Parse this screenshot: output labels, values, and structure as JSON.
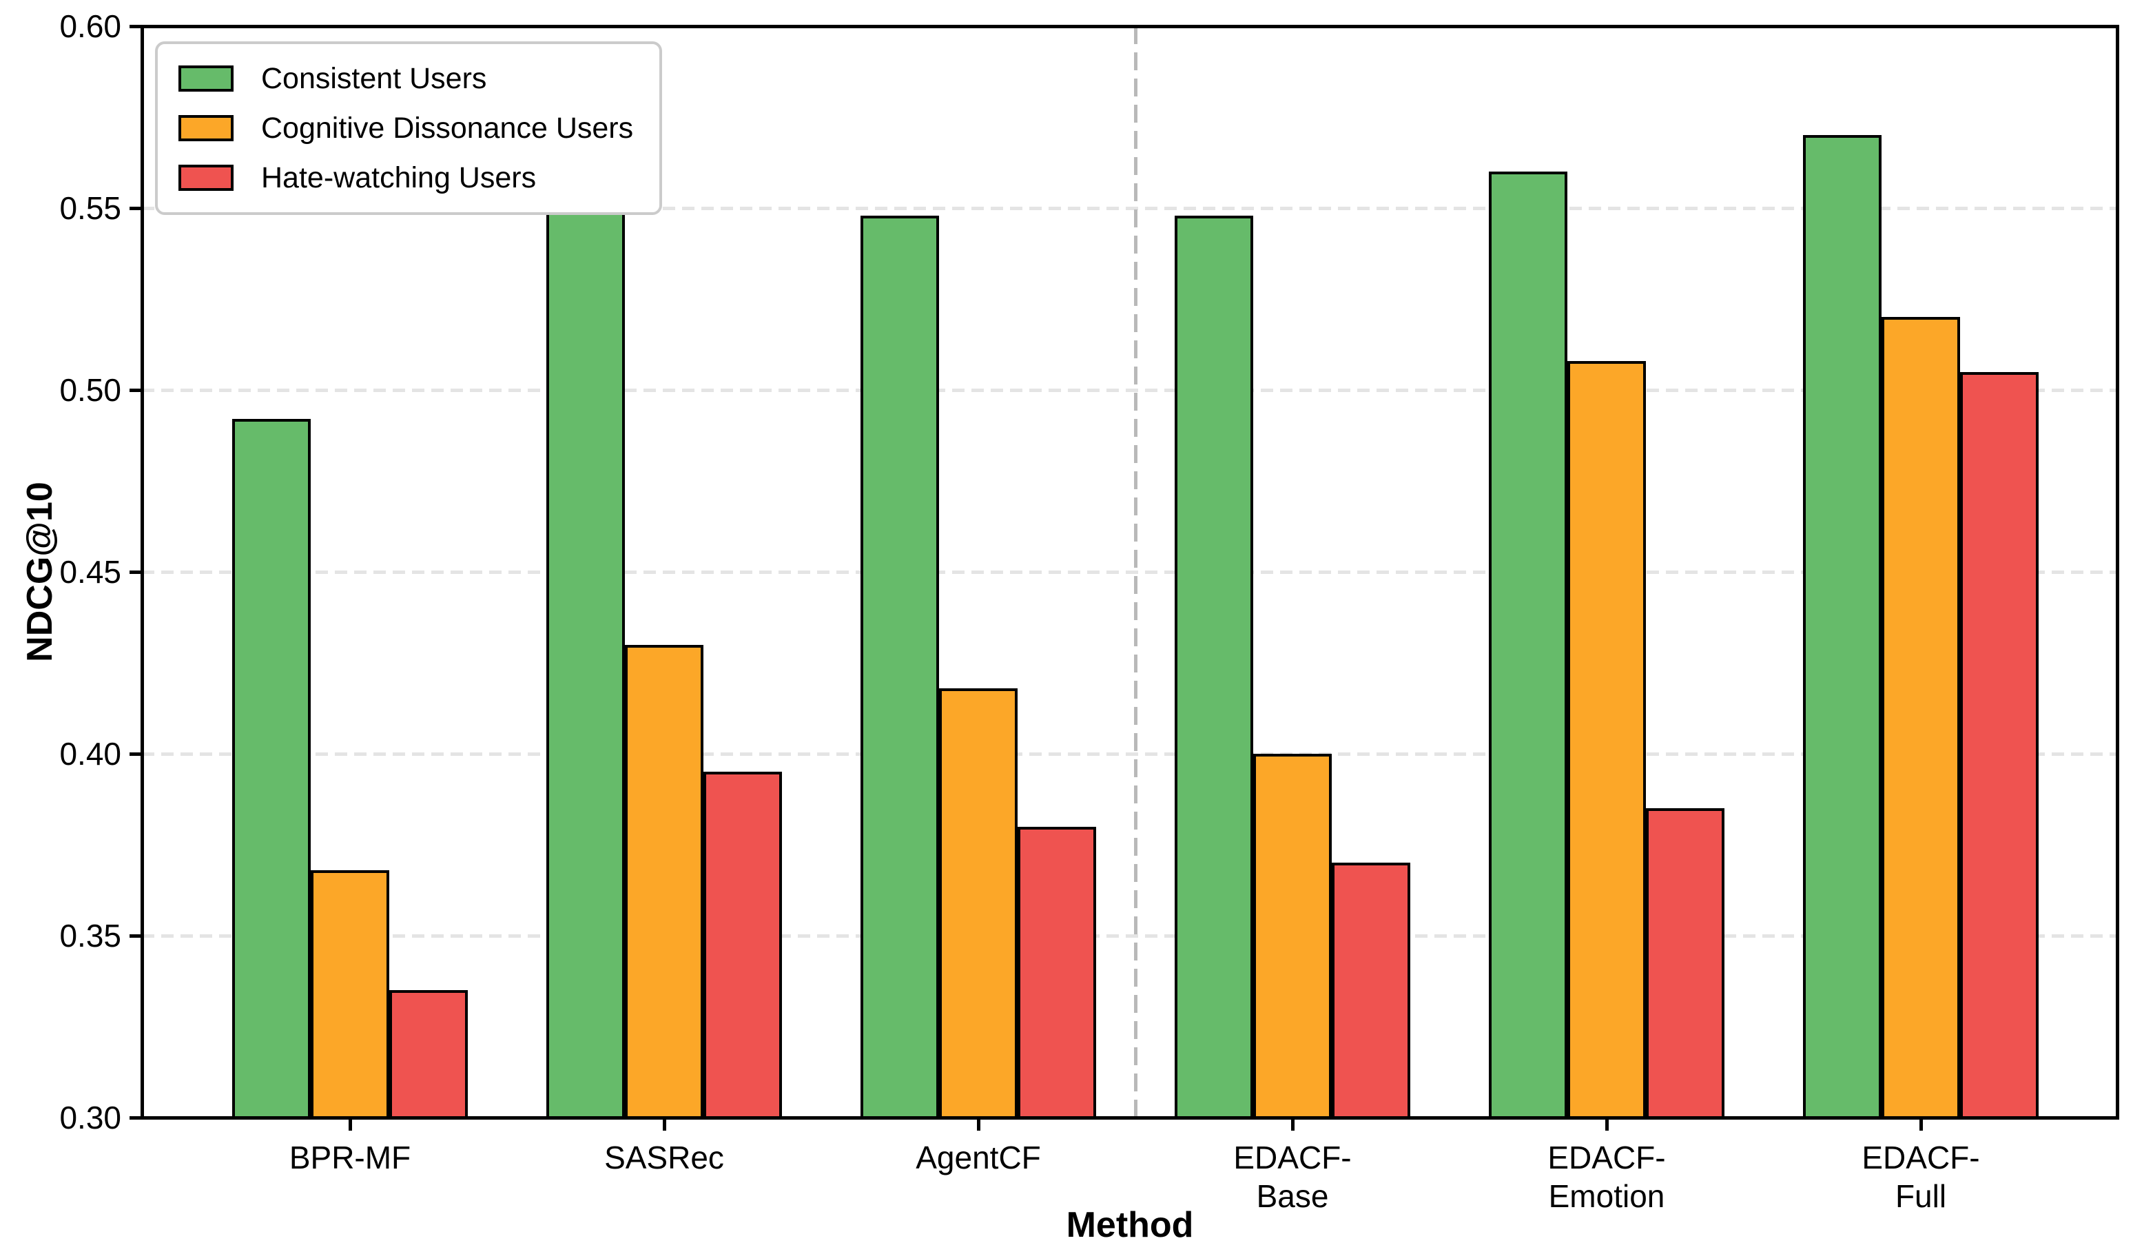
{
  "colors": {
    "axis": "#000000",
    "grid": "#e4e4e4",
    "separator": "#b9b9b9",
    "legend_border": "#cbcbcb",
    "background": "#ffffff",
    "bar_edge": "#000000"
  },
  "chart_data": {
    "type": "bar",
    "title": "",
    "xlabel": "Method",
    "ylabel": "NDCG@10",
    "ylim": [
      0.3,
      0.6
    ],
    "grid": "horizontal-dashed",
    "legend_position": "upper-left",
    "separator_after_category_index": 2,
    "yticks": [
      {
        "label": "0.60",
        "value": 0.6
      },
      {
        "label": "0.55",
        "value": 0.55
      },
      {
        "label": "0.50",
        "value": 0.5
      },
      {
        "label": "0.45",
        "value": 0.45
      },
      {
        "label": "0.40",
        "value": 0.4
      },
      {
        "label": "0.35",
        "value": 0.35
      },
      {
        "label": "0.30",
        "value": 0.3
      }
    ],
    "categories": [
      "BPR-MF",
      "SASRec",
      "AgentCF",
      "EDACF-Base",
      "EDACF-Emotion",
      "EDACF-Full"
    ],
    "category_label_lines": [
      [
        "BPR-MF"
      ],
      [
        "SASRec"
      ],
      [
        "AgentCF"
      ],
      [
        "EDACF-",
        "Base"
      ],
      [
        "EDACF-",
        "Emotion"
      ],
      [
        "EDACF-",
        "Full"
      ]
    ],
    "series": [
      {
        "name": "Consistent Users",
        "color": "#66BB6A",
        "values": [
          0.492,
          0.553,
          0.548,
          0.548,
          0.56,
          0.57
        ]
      },
      {
        "name": "Cognitive Dissonance Users",
        "color": "#FCA728",
        "values": [
          0.368,
          0.43,
          0.418,
          0.4,
          0.508,
          0.52
        ]
      },
      {
        "name": "Hate-watching Users",
        "color": "#EF5350",
        "values": [
          0.335,
          0.395,
          0.38,
          0.37,
          0.385,
          0.505
        ]
      }
    ]
  }
}
